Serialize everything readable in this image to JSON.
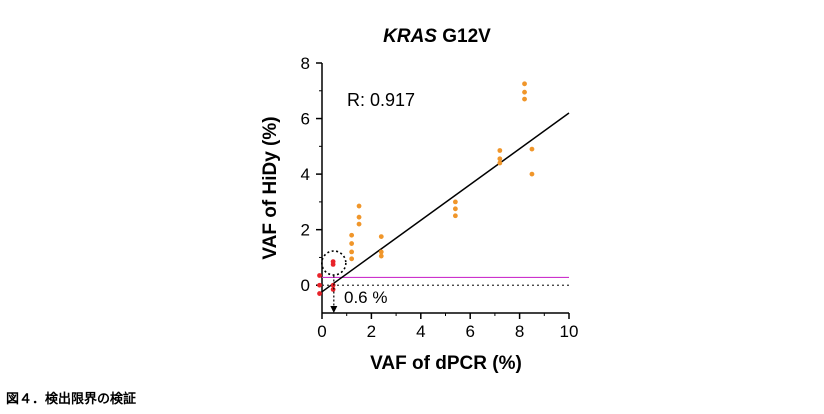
{
  "chart_data": {
    "type": "scatter",
    "title_italic": "KRAS",
    "title_rest": " G12V",
    "xlabel": "VAF of dPCR (%)",
    "ylabel": "VAF of HiDy (%)",
    "xlim": [
      0,
      10
    ],
    "ylim": [
      -1,
      8
    ],
    "xticks": [
      0,
      2,
      4,
      6,
      8,
      10
    ],
    "yticks": [
      0,
      2,
      4,
      6,
      8
    ],
    "annotation_r": "R: 0.917",
    "lod_label": "0.6 %",
    "lod_x": 0.6,
    "threshold_y": 0.28,
    "regression": {
      "x": [
        -0.1,
        10
      ],
      "y": [
        -0.3,
        6.2
      ]
    },
    "colors": {
      "positive": "#F0962A",
      "negative": "#E8232A",
      "threshold": "#CC33CC",
      "axis": "#000000"
    },
    "series": [
      {
        "role": "positive",
        "points": [
          [
            1.2,
            0.95
          ],
          [
            1.2,
            1.2
          ],
          [
            1.2,
            1.5
          ],
          [
            1.2,
            1.8
          ],
          [
            1.5,
            2.2
          ],
          [
            1.5,
            2.45
          ],
          [
            1.5,
            2.85
          ],
          [
            2.4,
            1.05
          ],
          [
            2.4,
            1.2
          ],
          [
            2.4,
            1.75
          ],
          [
            5.4,
            2.5
          ],
          [
            5.4,
            2.75
          ],
          [
            5.4,
            3.0
          ],
          [
            7.2,
            4.4
          ],
          [
            7.2,
            4.55
          ],
          [
            7.2,
            4.85
          ],
          [
            8.2,
            6.7
          ],
          [
            8.2,
            6.95
          ],
          [
            8.2,
            7.25
          ],
          [
            8.5,
            4.0
          ],
          [
            8.5,
            4.9
          ]
        ]
      },
      {
        "role": "negative",
        "points": [
          [
            -0.1,
            0.35
          ],
          [
            -0.1,
            -0.3
          ],
          [
            -0.1,
            0.0
          ],
          [
            0.45,
            0.75
          ],
          [
            0.45,
            0.85
          ],
          [
            0.45,
            0.0
          ],
          [
            0.45,
            -0.15
          ]
        ]
      }
    ]
  },
  "caption": "図４．検出限界の検証"
}
